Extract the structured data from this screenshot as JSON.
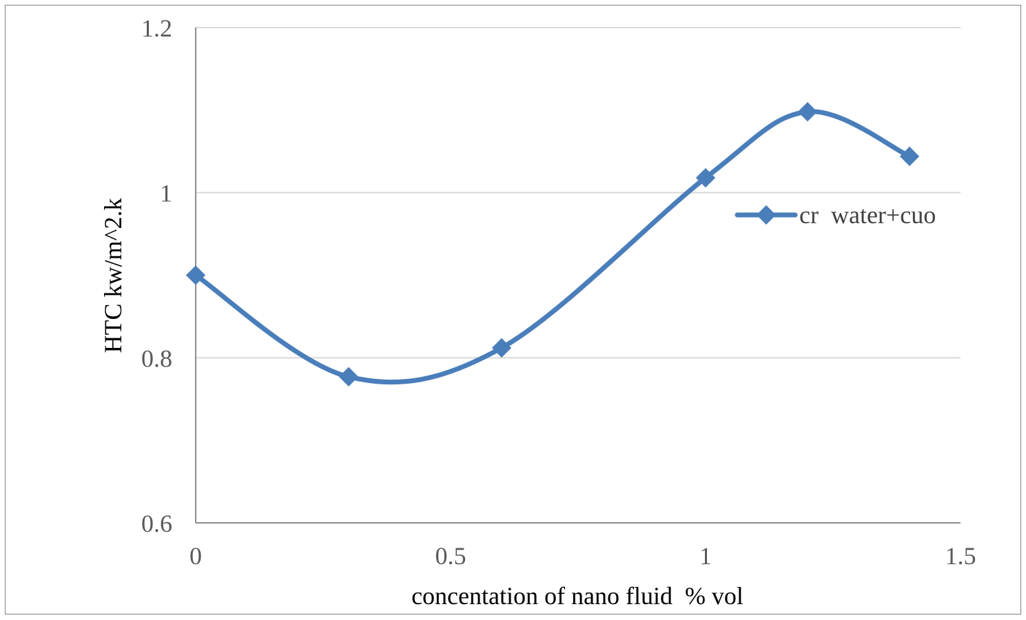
{
  "chart_data": {
    "type": "line",
    "title": "",
    "xlabel": "concentation of nano fluid  % vol",
    "ylabel": "HTC kw/m^2.k",
    "xlim": [
      0,
      1.5
    ],
    "ylim": [
      0.6,
      1.2
    ],
    "x_ticks": [
      "0",
      "0.5",
      "1",
      "1.5"
    ],
    "y_ticks": [
      "0.6",
      "0.8",
      "1",
      "1.2"
    ],
    "x_tick_values": [
      0,
      0.5,
      1,
      1.5
    ],
    "y_tick_values": [
      0.6,
      0.8,
      1.0,
      1.2
    ],
    "grid": "horizontal",
    "legend_position": "right",
    "smooth": true,
    "series": [
      {
        "name": "cr  water+cuo",
        "color": "#4a7ebb",
        "marker": "diamond",
        "x": [
          0,
          0.3,
          0.6,
          1.0,
          1.2,
          1.4
        ],
        "y": [
          0.9,
          0.777,
          0.812,
          1.018,
          1.098,
          1.044
        ]
      }
    ]
  }
}
